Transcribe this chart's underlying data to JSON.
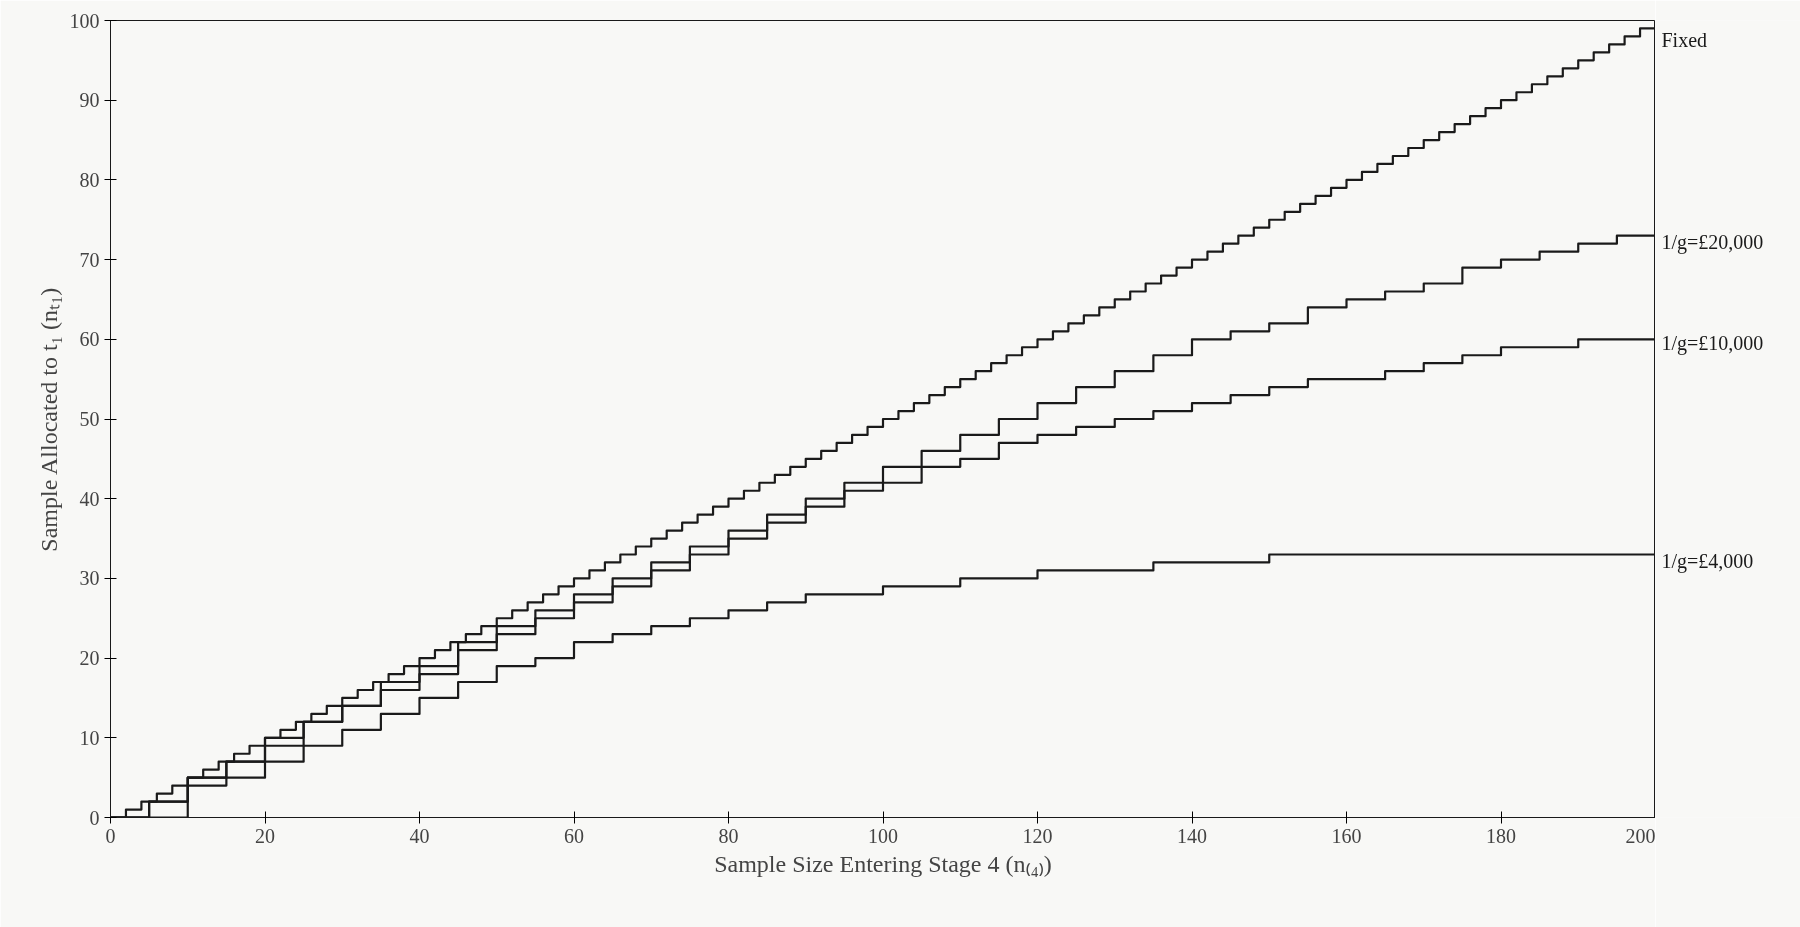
{
  "chart_data": {
    "type": "step",
    "xlabel": "Sample Size Entering Stage 4 (n₍₄₎)",
    "ylabel": "Sample Allocated to t₁ (nₜ₁)",
    "xlim": [
      0,
      200
    ],
    "ylim": [
      0,
      100
    ],
    "xticks": [
      0,
      20,
      40,
      60,
      80,
      100,
      120,
      140,
      160,
      180,
      200
    ],
    "yticks": [
      0,
      10,
      20,
      30,
      40,
      50,
      60,
      70,
      80,
      90,
      100
    ],
    "grid": false,
    "line_style": "solid",
    "marker": "none",
    "series": [
      {
        "name": "Fixed",
        "color": "#1a1a1a",
        "x": [
          0,
          2,
          4,
          6,
          8,
          10,
          12,
          14,
          16,
          18,
          20,
          22,
          24,
          26,
          28,
          30,
          32,
          34,
          36,
          38,
          40,
          42,
          44,
          46,
          48,
          50,
          52,
          54,
          56,
          58,
          60,
          62,
          64,
          66,
          68,
          70,
          72,
          74,
          76,
          78,
          80,
          82,
          84,
          86,
          88,
          90,
          92,
          94,
          96,
          98,
          100,
          102,
          104,
          106,
          108,
          110,
          112,
          114,
          116,
          118,
          120,
          122,
          124,
          126,
          128,
          130,
          132,
          134,
          136,
          138,
          140,
          142,
          144,
          146,
          148,
          150,
          152,
          154,
          156,
          158,
          160,
          162,
          164,
          166,
          168,
          170,
          172,
          174,
          176,
          178,
          180,
          182,
          184,
          186,
          188,
          190,
          192,
          194,
          196,
          198,
          200
        ],
        "values": [
          0,
          1,
          2,
          3,
          4,
          5,
          6,
          7,
          8,
          9,
          10,
          11,
          12,
          13,
          14,
          15,
          16,
          17,
          18,
          19,
          20,
          21,
          22,
          23,
          24,
          25,
          26,
          27,
          28,
          29,
          30,
          31,
          32,
          33,
          34,
          35,
          36,
          37,
          38,
          39,
          40,
          41,
          42,
          43,
          44,
          45,
          46,
          47,
          48,
          49,
          50,
          51,
          52,
          53,
          54,
          55,
          56,
          57,
          58,
          59,
          60,
          61,
          62,
          63,
          64,
          65,
          66,
          67,
          68,
          69,
          70,
          71,
          72,
          73,
          74,
          75,
          76,
          77,
          78,
          79,
          80,
          81,
          82,
          83,
          84,
          85,
          86,
          87,
          88,
          89,
          90,
          91,
          92,
          93,
          94,
          95,
          96,
          97,
          98,
          99,
          100
        ]
      },
      {
        "name": "1/g=£20,000",
        "color": "#1a1a1a",
        "x": [
          0,
          5,
          10,
          15,
          20,
          25,
          30,
          35,
          40,
          45,
          50,
          55,
          60,
          65,
          70,
          75,
          80,
          85,
          90,
          95,
          100,
          105,
          110,
          115,
          120,
          125,
          130,
          135,
          140,
          145,
          150,
          155,
          160,
          165,
          170,
          175,
          180,
          185,
          190,
          195,
          200
        ],
        "values": [
          0,
          2,
          5,
          7,
          10,
          12,
          14,
          17,
          19,
          22,
          24,
          26,
          28,
          30,
          32,
          34,
          36,
          38,
          40,
          42,
          44,
          46,
          48,
          50,
          52,
          54,
          56,
          58,
          60,
          61,
          62,
          64,
          65,
          66,
          67,
          69,
          70,
          71,
          72,
          73,
          74
        ]
      },
      {
        "name": "1/g=£10,000",
        "color": "#1a1a1a",
        "x": [
          0,
          5,
          10,
          15,
          20,
          25,
          30,
          35,
          40,
          45,
          50,
          55,
          60,
          65,
          70,
          75,
          80,
          85,
          90,
          95,
          100,
          105,
          110,
          115,
          120,
          125,
          130,
          135,
          140,
          145,
          150,
          155,
          160,
          165,
          170,
          175,
          180,
          185,
          190,
          195,
          200
        ],
        "values": [
          0,
          2,
          5,
          7,
          9,
          12,
          14,
          16,
          18,
          21,
          23,
          25,
          27,
          29,
          31,
          33,
          35,
          37,
          39,
          41,
          42,
          44,
          45,
          47,
          48,
          49,
          50,
          51,
          52,
          53,
          54,
          55,
          55,
          56,
          57,
          58,
          59,
          59,
          60,
          60,
          61
        ]
      },
      {
        "name": "1/g=£4,000",
        "color": "#1a1a1a",
        "x": [
          0,
          5,
          10,
          15,
          20,
          25,
          30,
          35,
          40,
          45,
          50,
          55,
          60,
          65,
          70,
          75,
          80,
          85,
          90,
          95,
          100,
          105,
          110,
          115,
          120,
          125,
          130,
          135,
          140,
          145,
          150,
          155,
          160,
          165,
          170,
          175,
          180,
          185,
          190,
          195,
          200
        ],
        "values": [
          0,
          0,
          4,
          5,
          7,
          9,
          11,
          13,
          15,
          17,
          19,
          20,
          22,
          23,
          24,
          25,
          26,
          27,
          28,
          28,
          29,
          29,
          30,
          30,
          31,
          31,
          31,
          32,
          32,
          32,
          33,
          33,
          33,
          33,
          33,
          33,
          33,
          33,
          33,
          33,
          33
        ]
      }
    ]
  }
}
